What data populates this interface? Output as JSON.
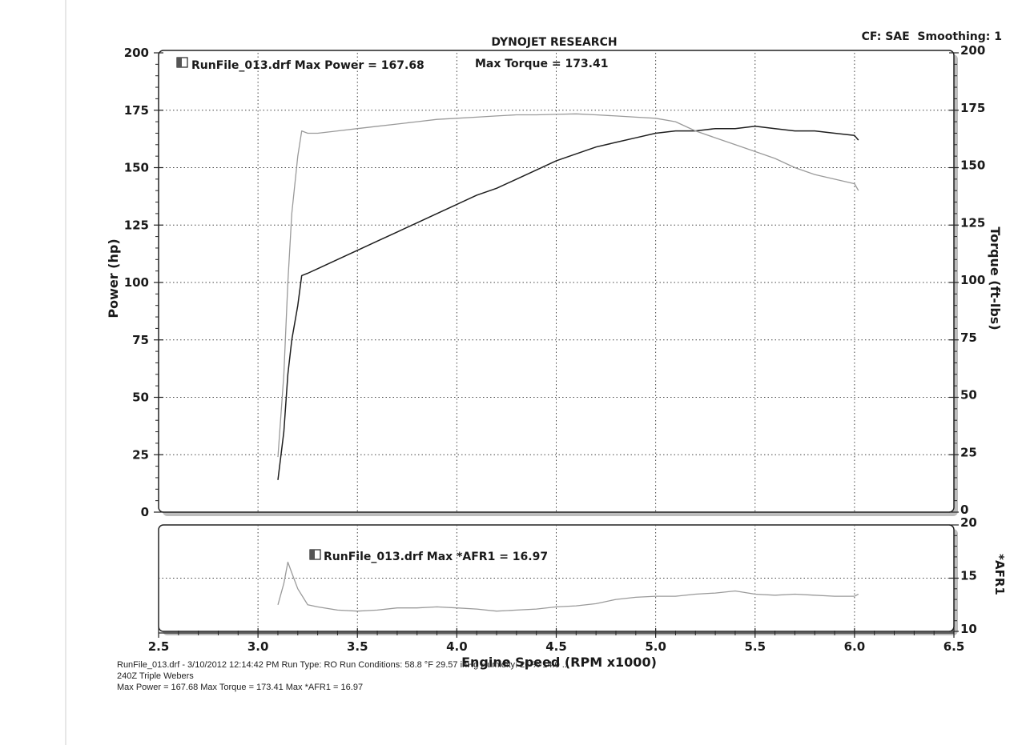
{
  "chart_title": "DYNOJET RESEARCH",
  "corner_info": "CF: SAE  Smoothing: 1",
  "colors": {
    "power_line": "#1e1e1e",
    "torque_line": "#9a9a9a",
    "afr_line": "#9a9a9a",
    "grid": "#444444",
    "frame": "#222222",
    "shadow": "#bdbdbd"
  },
  "legend": {
    "main": "RunFile_013.drf Max Power = 167.68",
    "main_torque": "Max Torque = 173.41",
    "afr": "RunFile_013.drf Max *AFR1 = 16.97"
  },
  "axes": {
    "xlabel": "Engine Speed (RPM x1000)",
    "ylabel_left": "Power (hp)",
    "ylabel_right": "Torque (ft-lbs)",
    "ylabel_afr": "*AFR1",
    "x_ticks": [
      "2.5",
      "3.0",
      "3.5",
      "4.0",
      "4.5",
      "5.0",
      "5.5",
      "6.0",
      "6.5"
    ],
    "y_ticks_left": [
      "0",
      "25",
      "50",
      "75",
      "100",
      "125",
      "150",
      "175",
      "200"
    ],
    "y_ticks_right": [
      "0",
      "25",
      "50",
      "75",
      "100",
      "125",
      "150",
      "175",
      "200"
    ],
    "y_ticks_afr": [
      "10",
      "15",
      "20"
    ]
  },
  "footer": {
    "line1": "RunFile_013.drf - 3/10/2012 12:14:42 PM  Run Type: RO  Run Conditions: 58.8 °F 29.57 inHg  Humidity: 26 %  14.0 ...",
    "line2": "240Z Triple Webers",
    "line3": "Max Power = 167.68  Max Torque = 173.41  Max *AFR1 = 16.97"
  },
  "chart_data": [
    {
      "type": "line",
      "title": "DYNOJET RESEARCH",
      "xlabel": "Engine Speed (RPM x1000)",
      "ylabel": "Power (hp)",
      "ylabel_right": "Torque (ft-lbs)",
      "xlim": [
        2.5,
        6.5
      ],
      "ylim": [
        0,
        200
      ],
      "ylim_right": [
        0,
        200
      ],
      "grid": true,
      "series": [
        {
          "name": "Max Power",
          "axis": "left",
          "x": [
            3.1,
            3.13,
            3.15,
            3.17,
            3.2,
            3.22,
            3.25,
            3.3,
            3.4,
            3.5,
            3.6,
            3.7,
            3.8,
            3.9,
            4.0,
            4.1,
            4.2,
            4.3,
            4.4,
            4.5,
            4.6,
            4.7,
            4.8,
            4.9,
            5.0,
            5.1,
            5.2,
            5.3,
            5.4,
            5.5,
            5.6,
            5.7,
            5.8,
            5.9,
            6.0,
            6.02
          ],
          "y": [
            14,
            35,
            60,
            75,
            90,
            103,
            104,
            106,
            110,
            114,
            118,
            122,
            126,
            130,
            134,
            138,
            141,
            145,
            149,
            153,
            156,
            159,
            161,
            163,
            165,
            166,
            166,
            167,
            167,
            168,
            167,
            166,
            166,
            165,
            164,
            162
          ]
        },
        {
          "name": "Max Torque",
          "axis": "right",
          "x": [
            3.1,
            3.13,
            3.15,
            3.17,
            3.2,
            3.22,
            3.25,
            3.3,
            3.4,
            3.5,
            3.6,
            3.7,
            3.8,
            3.9,
            4.0,
            4.1,
            4.2,
            4.3,
            4.4,
            4.5,
            4.6,
            4.7,
            4.8,
            4.9,
            5.0,
            5.1,
            5.2,
            5.3,
            5.4,
            5.5,
            5.6,
            5.7,
            5.8,
            5.9,
            6.0,
            6.02
          ],
          "y": [
            24,
            60,
            100,
            130,
            155,
            166,
            165,
            165,
            166,
            167,
            168,
            169,
            170,
            171,
            171.5,
            172,
            172.5,
            173,
            173,
            173.2,
            173.4,
            173,
            172.5,
            172,
            171.5,
            170,
            166,
            163,
            160,
            157,
            154,
            150,
            147,
            145,
            143,
            140
          ]
        }
      ]
    },
    {
      "type": "line",
      "xlabel": "Engine Speed (RPM x1000)",
      "ylabel": "*AFR1",
      "xlim": [
        2.5,
        6.5
      ],
      "ylim": [
        10,
        20
      ],
      "grid": true,
      "series": [
        {
          "name": "Max *AFR1",
          "x": [
            3.1,
            3.13,
            3.15,
            3.17,
            3.2,
            3.25,
            3.3,
            3.4,
            3.5,
            3.6,
            3.7,
            3.8,
            3.9,
            4.0,
            4.1,
            4.2,
            4.3,
            4.4,
            4.5,
            4.6,
            4.7,
            4.8,
            4.9,
            5.0,
            5.1,
            5.2,
            5.3,
            5.4,
            5.5,
            5.6,
            5.7,
            5.8,
            5.9,
            6.0,
            6.02
          ],
          "y": [
            12.5,
            14.5,
            16.5,
            15.5,
            14.0,
            12.5,
            12.3,
            12.0,
            11.9,
            12.0,
            12.2,
            12.2,
            12.3,
            12.2,
            12.1,
            11.9,
            12.0,
            12.1,
            12.3,
            12.4,
            12.6,
            13.0,
            13.2,
            13.3,
            13.3,
            13.5,
            13.6,
            13.8,
            13.5,
            13.4,
            13.5,
            13.4,
            13.3,
            13.3,
            13.5
          ]
        }
      ]
    }
  ]
}
